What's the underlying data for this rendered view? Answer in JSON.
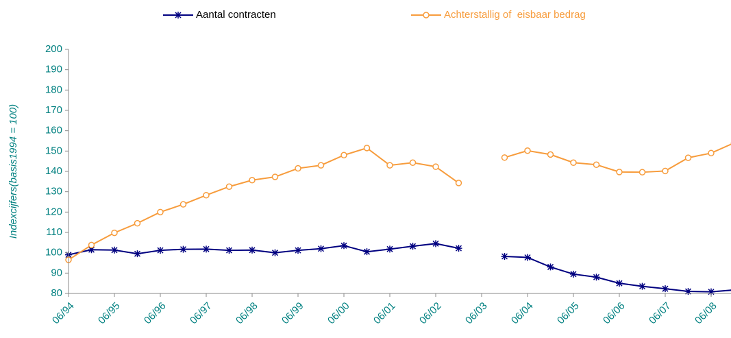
{
  "chart_data": {
    "type": "line",
    "y_label": "Indexcijfers(basis1994 = 100)",
    "categories": [
      "06/94",
      null,
      "06/95",
      null,
      "06/96",
      null,
      "06/97",
      null,
      "06/98",
      null,
      "06/99",
      null,
      "06/00",
      null,
      "06/01",
      null,
      "06/02",
      null,
      "06/03",
      null,
      "06/04",
      null,
      "06/05",
      null,
      "06/06",
      null,
      "06/07",
      null,
      "06/08",
      null
    ],
    "series": [
      {
        "name": "Aantal contracten",
        "color": "#000080",
        "marker": "star",
        "values": [
          99,
          101.5,
          101.3,
          99.5,
          101.2,
          101.7,
          101.8,
          101.2,
          101.3,
          100,
          101.2,
          102,
          103.5,
          100.5,
          101.8,
          103.2,
          104.5,
          102.2,
          null,
          98.2,
          97.7,
          93,
          89.5,
          88,
          85,
          83.5,
          82.3,
          81,
          80.8,
          81.7
        ]
      },
      {
        "name": "Achterstallig of  eisbaar bedrag",
        "color": "#f79c3c",
        "marker": "circle",
        "values": [
          96.5,
          103.8,
          109.8,
          114.5,
          120,
          123.8,
          128.3,
          132.5,
          135.7,
          137.3,
          141.5,
          143,
          148,
          151.5,
          143,
          144.3,
          142.3,
          134.3,
          null,
          146.8,
          150.2,
          148.3,
          144.3,
          143.3,
          139.7,
          139.6,
          140.2,
          146.7,
          149,
          154
        ]
      }
    ],
    "ylim": [
      80,
      200
    ],
    "yticks": [
      80,
      90,
      100,
      110,
      120,
      130,
      140,
      150,
      160,
      170,
      180,
      190,
      200
    ],
    "legend": "top"
  }
}
